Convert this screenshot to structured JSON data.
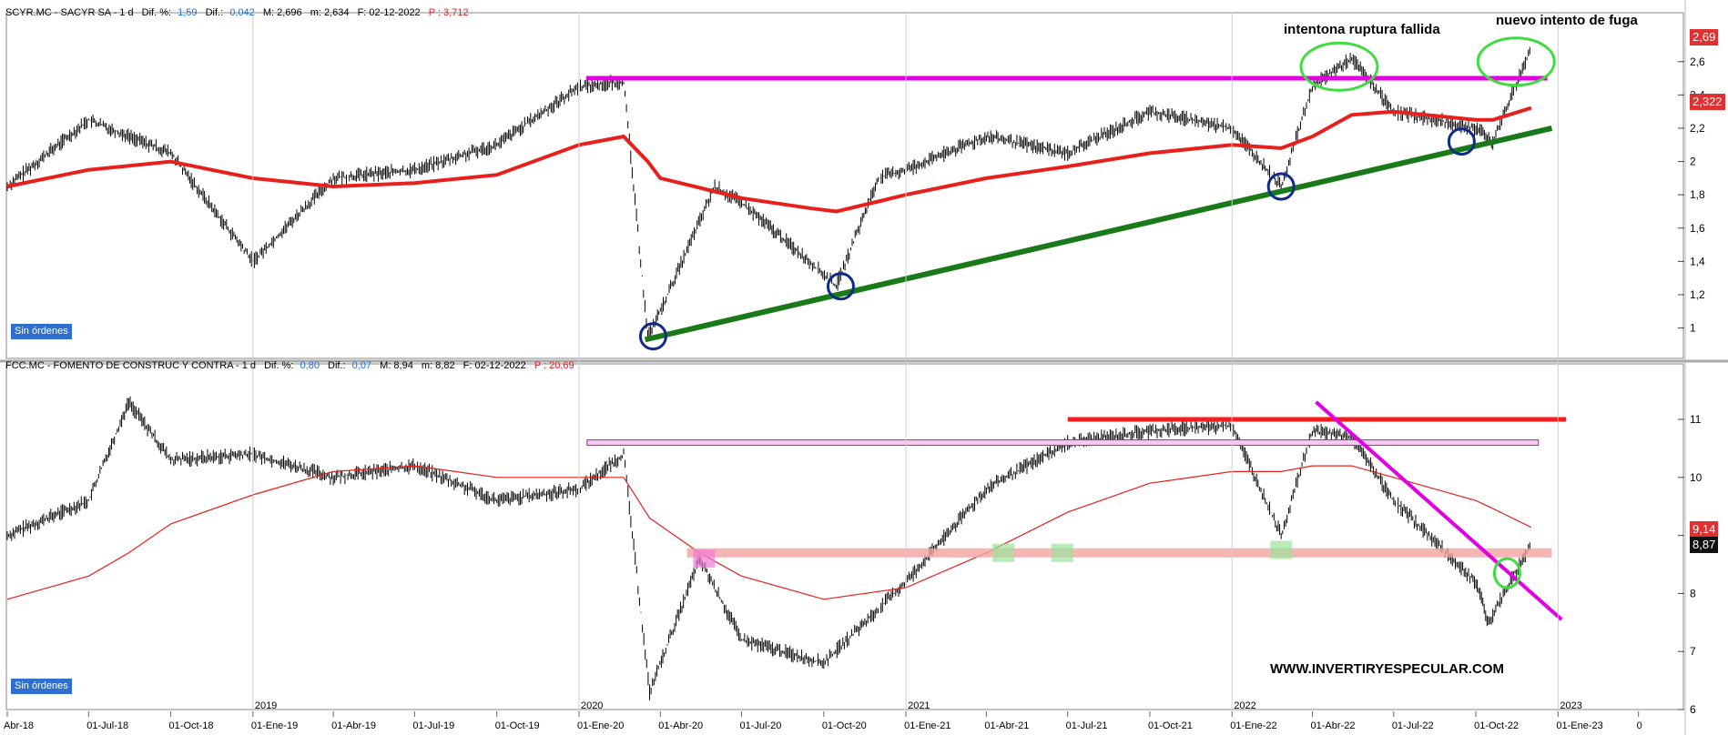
{
  "top_panel": {
    "header": {
      "symbol": "SCYR.MC - SACYR SA - ",
      "interval": " 1 d",
      "dif_pct_label": "Dif. %:",
      "dif_pct_value": "1,59",
      "dif_label": "Dif.:",
      "dif_value": "0,042",
      "m_value": "M: 2,696",
      "min_value": "m: 2,634",
      "date": "F: 02-12-2022",
      "p_value": "P : 3,712"
    },
    "annotation_1": "intentona ruptura fallida",
    "annotation_2": "nuevo intento de fuga",
    "orders_badge": "Sin órdenes",
    "price_tag": "2,69",
    "ma_tag": "2,322"
  },
  "bottom_panel": {
    "header": {
      "symbol": "FCC.MC - FOMENTO DE CONSTRUC Y CONTRA - ",
      "interval": " 1 d",
      "dif_pct_label": "Dif. %:",
      "dif_pct_value": "0,80",
      "dif_label": "Dif.:",
      "dif_value": "0,07",
      "m_value": "M: 8,94",
      "min_value": "m: 8,82",
      "date": "F: 02-12-2022",
      "p_value": "P : 20,69"
    },
    "watermark": "WWW.INVERTIRYESPECULAR.COM",
    "orders_badge": "Sin órdenes",
    "ma_tag": "9,14",
    "price_tag": "8,87"
  },
  "x_axis": {
    "labels": [
      "Abr-18",
      "01-Jul-18",
      "01-Oct-18",
      "01-Ene-19",
      "01-Abr-19",
      "01-Jul-19",
      "01-Oct-19",
      "01-Ene-20",
      "01-Abr-20",
      "01-Jul-20",
      "01-Oct-20",
      "01-Ene-21",
      "01-Abr-21",
      "01-Jul-21",
      "01-Oct-21",
      "01-Ene-22",
      "01-Abr-22",
      "01-Jul-22",
      "01-Oct-22",
      "01-Ene-23",
      "0"
    ],
    "years": [
      "2019",
      "2020",
      "2021",
      "2022",
      "2023"
    ]
  },
  "colors": {
    "price": "#000000",
    "ma_top": "#e8201c",
    "ma_bottom": "#e8201c",
    "resistance_top": "#e000e0",
    "support": "#1a7a1a",
    "circle_blue": "#102a8a",
    "circle_green": "#3fdc3f",
    "resistance_bottom": "#ff1a1a",
    "downtrend": "#e000e0"
  },
  "chart_data": [
    {
      "type": "line",
      "title": "SCYR.MC - SACYR SA",
      "ylim": [
        0.85,
        2.85
      ],
      "yticks": [
        "1",
        "1,2",
        "1,4",
        "1,6",
        "1,8",
        "2",
        "2,2",
        "2,4",
        "2,6"
      ],
      "x": [
        "2018-04-01",
        "2018-07-01",
        "2018-10-01",
        "2019-01-01",
        "2019-04-01",
        "2019-07-01",
        "2019-10-01",
        "2020-01-01",
        "2020-02-20",
        "2020-03-18",
        "2020-04-01",
        "2020-06-01",
        "2020-07-01",
        "2020-09-15",
        "2020-10-15",
        "2020-12-01",
        "2021-01-01",
        "2021-04-01",
        "2021-07-01",
        "2021-10-01",
        "2022-01-01",
        "2022-02-25",
        "2022-04-01",
        "2022-05-15",
        "2022-07-01",
        "2022-10-01",
        "2022-10-20",
        "2022-12-02"
      ],
      "series": [
        {
          "values": [
            1.85,
            2.25,
            2.05,
            1.4,
            1.9,
            1.95,
            2.1,
            2.45,
            2.48,
            0.95,
            1.1,
            1.85,
            1.75,
            1.4,
            1.25,
            1.9,
            1.95,
            2.15,
            2.05,
            2.3,
            2.2,
            1.85,
            2.45,
            2.62,
            2.3,
            2.2,
            2.12,
            2.69
          ]
        },
        {
          "values": [
            1.85,
            1.95,
            2.0,
            1.9,
            1.85,
            1.87,
            1.92,
            2.1,
            2.15,
            2.0,
            1.9,
            1.82,
            1.78,
            1.72,
            1.7,
            1.76,
            1.8,
            1.9,
            1.97,
            2.05,
            2.1,
            2.08,
            2.15,
            2.28,
            2.3,
            2.25,
            2.25,
            2.322
          ]
        }
      ]
    },
    {
      "type": "line",
      "title": "FCC.MC - FOMENTO DE CONSTRUC Y CONTRA",
      "ylim": [
        6,
        11.8
      ],
      "yticks": [
        "6",
        "7",
        "8",
        "9",
        "10",
        "11"
      ],
      "x": [
        "2018-04-01",
        "2018-07-01",
        "2018-08-15",
        "2018-10-01",
        "2019-01-01",
        "2019-04-01",
        "2019-07-01",
        "2019-10-01",
        "2020-01-01",
        "2020-02-20",
        "2020-03-20",
        "2020-05-15",
        "2020-07-01",
        "2020-10-01",
        "2021-01-01",
        "2021-04-01",
        "2021-07-01",
        "2021-10-01",
        "2022-01-01",
        "2022-02-25",
        "2022-04-01",
        "2022-05-15",
        "2022-07-01",
        "2022-10-01",
        "2022-10-15",
        "2022-12-02"
      ],
      "series": [
        {
          "values": [
            9.0,
            9.6,
            11.3,
            10.3,
            10.4,
            10.0,
            10.2,
            9.6,
            9.8,
            10.4,
            6.3,
            8.6,
            7.2,
            6.8,
            8.2,
            9.8,
            10.6,
            10.8,
            10.9,
            9.0,
            10.8,
            10.7,
            9.6,
            8.2,
            7.5,
            8.87
          ]
        },
        {
          "values": [
            7.9,
            8.3,
            8.7,
            9.2,
            9.7,
            10.1,
            10.2,
            10.0,
            10.0,
            10.0,
            9.3,
            8.7,
            8.3,
            7.9,
            8.1,
            8.7,
            9.4,
            9.9,
            10.1,
            10.1,
            10.2,
            10.2,
            10.0,
            9.6,
            9.5,
            9.14
          ]
        }
      ]
    }
  ]
}
